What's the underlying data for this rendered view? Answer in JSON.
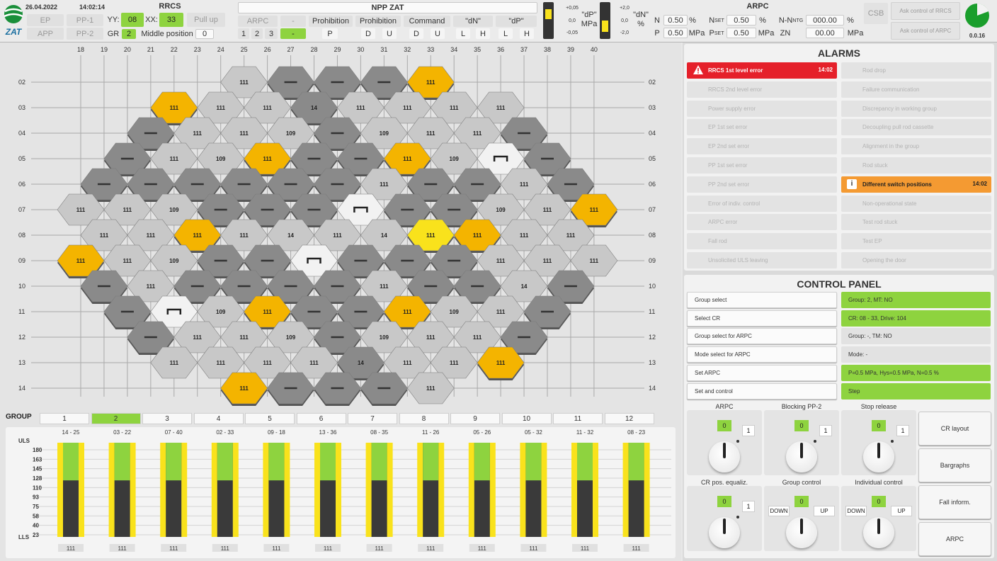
{
  "header": {
    "date": "26.04.2022",
    "time": "14:02:14",
    "logo_text": "ZAT",
    "ep": "EP",
    "pp1": "PP-1",
    "app": "APP",
    "pp2": "PP-2",
    "rrcs_title": "RRCS",
    "yy_label": "YY:",
    "yy_value": "08",
    "xx_label": "XX:",
    "xx_value": "33",
    "pull_up": "Pull up",
    "gr_label": "GR",
    "gr_value": "2",
    "middle_label": "Middle position",
    "middle_value": "0",
    "npp_title": "NPP ZAT",
    "arpc_btn": "ARPC",
    "dash_btn": "-",
    "prohibition1": "Prohibition",
    "prohibition2": "Prohibition",
    "command": "Command",
    "dn_label": "\"dN\"",
    "dp_label": "\"dP\"",
    "n1": "1",
    "n2": "2",
    "n3": "3",
    "green_dash": "-",
    "p_key": "P",
    "d1": "D",
    "u1": "U",
    "d2": "D",
    "u2": "U",
    "l1": "L",
    "h1": "H",
    "l2": "L",
    "h2": "H",
    "gauge1_top": "+0,05",
    "gauge1_mid": "0,0",
    "gauge1_bot": "-0,05",
    "gauge1_label1": "\"dP\"",
    "gauge1_label2": "MPa",
    "gauge2_top": "+2,0",
    "gauge2_mid": "0,0",
    "gauge2_bot": "-2,0",
    "gauge2_label1": "\"dN\"",
    "gauge2_label2": "%",
    "arpc_title": "ARPC",
    "n_label": "N",
    "n_value": "0.50",
    "n_unit": "%",
    "nset_label": "N",
    "nset_sub": "SET",
    "nset_value": "0.50",
    "nset_unit": "%",
    "nn_label": "N-N",
    "nn_sub": "NTG",
    "nn_value": "000.00",
    "nn_unit": "%",
    "p_label": "P",
    "p_value": "0.50",
    "p_unit": "MPa",
    "pset_label": "P",
    "pset_sub": "SET",
    "pset_value": "0.50",
    "pset_unit": "MPa",
    "zn_label": "ZN",
    "zn_value": "00.00",
    "zn_unit": "MPa",
    "csb": "CSB",
    "ask_rrcs": "Ask control of RRCS",
    "ask_arpc": "Ask control of ARPC",
    "version": "0.0.16"
  },
  "grid": {
    "col_labels": [
      "18",
      "19",
      "20",
      "21",
      "22",
      "23",
      "24",
      "25",
      "26",
      "27",
      "28",
      "29",
      "30",
      "31",
      "32",
      "33",
      "34",
      "35",
      "36",
      "37",
      "38",
      "39",
      "40"
    ],
    "row_labels": [
      "02",
      "03",
      "04",
      "05",
      "06",
      "07",
      "08",
      "09",
      "10",
      "11",
      "12",
      "13",
      "14"
    ],
    "cells": [
      {
        "r": 0,
        "c": 25,
        "t": "l",
        "v": "111"
      },
      {
        "r": 0,
        "c": 27,
        "t": "d",
        "v": "—"
      },
      {
        "r": 0,
        "c": 29,
        "t": "d",
        "v": "—"
      },
      {
        "r": 0,
        "c": 31,
        "t": "d",
        "v": "—"
      },
      {
        "r": 0,
        "c": 33,
        "t": "o",
        "v": "111"
      },
      {
        "r": 1,
        "c": 22,
        "t": "o",
        "v": "111"
      },
      {
        "r": 1,
        "c": 24,
        "t": "l",
        "v": "111"
      },
      {
        "r": 1,
        "c": 26,
        "t": "l",
        "v": "111"
      },
      {
        "r": 1,
        "c": 28,
        "t": "d",
        "v": "14"
      },
      {
        "r": 1,
        "c": 30,
        "t": "l",
        "v": "111"
      },
      {
        "r": 1,
        "c": 32,
        "t": "l",
        "v": "111"
      },
      {
        "r": 1,
        "c": 34,
        "t": "l",
        "v": "111"
      },
      {
        "r": 1,
        "c": 36,
        "t": "l",
        "v": "111"
      },
      {
        "r": 2,
        "c": 21,
        "t": "d",
        "v": "—"
      },
      {
        "r": 2,
        "c": 23,
        "t": "l",
        "v": "111"
      },
      {
        "r": 2,
        "c": 25,
        "t": "l",
        "v": "111"
      },
      {
        "r": 2,
        "c": 27,
        "t": "l",
        "v": "109"
      },
      {
        "r": 2,
        "c": 29,
        "t": "d",
        "v": "—"
      },
      {
        "r": 2,
        "c": 31,
        "t": "l",
        "v": "109"
      },
      {
        "r": 2,
        "c": 33,
        "t": "l",
        "v": "111"
      },
      {
        "r": 2,
        "c": 35,
        "t": "l",
        "v": "111"
      },
      {
        "r": 2,
        "c": 37,
        "t": "d",
        "v": "—"
      },
      {
        "r": 3,
        "c": 20,
        "t": "d",
        "v": "—"
      },
      {
        "r": 3,
        "c": 22,
        "t": "l",
        "v": "111"
      },
      {
        "r": 3,
        "c": 24,
        "t": "l",
        "v": "109"
      },
      {
        "r": 3,
        "c": 26,
        "t": "o",
        "v": "111"
      },
      {
        "r": 3,
        "c": 28,
        "t": "d",
        "v": "—"
      },
      {
        "r": 3,
        "c": 30,
        "t": "d",
        "v": "—"
      },
      {
        "r": 3,
        "c": 32,
        "t": "o",
        "v": "111"
      },
      {
        "r": 3,
        "c": 34,
        "t": "l",
        "v": "109"
      },
      {
        "r": 3,
        "c": 36,
        "t": "w",
        "v": "⊓"
      },
      {
        "r": 3,
        "c": 38,
        "t": "d",
        "v": "—"
      },
      {
        "r": 4,
        "c": 19,
        "t": "d",
        "v": "—"
      },
      {
        "r": 4,
        "c": 21,
        "t": "d",
        "v": "—"
      },
      {
        "r": 4,
        "c": 23,
        "t": "d",
        "v": "—"
      },
      {
        "r": 4,
        "c": 25,
        "t": "d",
        "v": "—"
      },
      {
        "r": 4,
        "c": 27,
        "t": "d",
        "v": "—"
      },
      {
        "r": 4,
        "c": 29,
        "t": "d",
        "v": "—"
      },
      {
        "r": 4,
        "c": 31,
        "t": "l",
        "v": "111"
      },
      {
        "r": 4,
        "c": 33,
        "t": "d",
        "v": "—"
      },
      {
        "r": 4,
        "c": 35,
        "t": "d",
        "v": "—"
      },
      {
        "r": 4,
        "c": 37,
        "t": "l",
        "v": "111"
      },
      {
        "r": 4,
        "c": 39,
        "t": "d",
        "v": "—"
      },
      {
        "r": 5,
        "c": 18,
        "t": "l",
        "v": "111"
      },
      {
        "r": 5,
        "c": 20,
        "t": "l",
        "v": "111"
      },
      {
        "r": 5,
        "c": 22,
        "t": "l",
        "v": "109"
      },
      {
        "r": 5,
        "c": 24,
        "t": "d",
        "v": "—"
      },
      {
        "r": 5,
        "c": 26,
        "t": "d",
        "v": "—"
      },
      {
        "r": 5,
        "c": 28,
        "t": "d",
        "v": "—"
      },
      {
        "r": 5,
        "c": 30,
        "t": "w",
        "v": "⊓"
      },
      {
        "r": 5,
        "c": 32,
        "t": "d",
        "v": "—"
      },
      {
        "r": 5,
        "c": 34,
        "t": "d",
        "v": "—"
      },
      {
        "r": 5,
        "c": 36,
        "t": "l",
        "v": "109"
      },
      {
        "r": 5,
        "c": 38,
        "t": "l",
        "v": "111"
      },
      {
        "r": 5,
        "c": 40,
        "t": "o",
        "v": "111"
      },
      {
        "r": 6,
        "c": 19,
        "t": "l",
        "v": "111"
      },
      {
        "r": 6,
        "c": 21,
        "t": "l",
        "v": "111"
      },
      {
        "r": 6,
        "c": 23,
        "t": "o",
        "v": "111"
      },
      {
        "r": 6,
        "c": 25,
        "t": "l",
        "v": "111"
      },
      {
        "r": 6,
        "c": 27,
        "t": "l",
        "v": "14"
      },
      {
        "r": 6,
        "c": 29,
        "t": "l",
        "v": "111"
      },
      {
        "r": 6,
        "c": 31,
        "t": "l",
        "v": "14"
      },
      {
        "r": 6,
        "c": 33,
        "t": "y",
        "v": "111"
      },
      {
        "r": 6,
        "c": 35,
        "t": "o",
        "v": "111"
      },
      {
        "r": 6,
        "c": 37,
        "t": "l",
        "v": "111"
      },
      {
        "r": 6,
        "c": 39,
        "t": "l",
        "v": "111"
      },
      {
        "r": 7,
        "c": 18,
        "t": "o",
        "v": "111"
      },
      {
        "r": 7,
        "c": 20,
        "t": "l",
        "v": "111"
      },
      {
        "r": 7,
        "c": 22,
        "t": "l",
        "v": "109"
      },
      {
        "r": 7,
        "c": 24,
        "t": "d",
        "v": "—"
      },
      {
        "r": 7,
        "c": 26,
        "t": "d",
        "v": "—"
      },
      {
        "r": 7,
        "c": 28,
        "t": "w",
        "v": "⊓"
      },
      {
        "r": 7,
        "c": 30,
        "t": "d",
        "v": "—"
      },
      {
        "r": 7,
        "c": 32,
        "t": "d",
        "v": "—"
      },
      {
        "r": 7,
        "c": 34,
        "t": "d",
        "v": "—"
      },
      {
        "r": 7,
        "c": 36,
        "t": "l",
        "v": "111"
      },
      {
        "r": 7,
        "c": 38,
        "t": "l",
        "v": "111"
      },
      {
        "r": 7,
        "c": 40,
        "t": "l",
        "v": "111"
      },
      {
        "r": 8,
        "c": 19,
        "t": "d",
        "v": "—"
      },
      {
        "r": 8,
        "c": 21,
        "t": "l",
        "v": "111"
      },
      {
        "r": 8,
        "c": 23,
        "t": "d",
        "v": "—"
      },
      {
        "r": 8,
        "c": 25,
        "t": "d",
        "v": "—"
      },
      {
        "r": 8,
        "c": 27,
        "t": "d",
        "v": "—"
      },
      {
        "r": 8,
        "c": 29,
        "t": "d",
        "v": "—"
      },
      {
        "r": 8,
        "c": 31,
        "t": "l",
        "v": "111"
      },
      {
        "r": 8,
        "c": 33,
        "t": "d",
        "v": "—"
      },
      {
        "r": 8,
        "c": 35,
        "t": "d",
        "v": "—"
      },
      {
        "r": 8,
        "c": 37,
        "t": "l",
        "v": "14"
      },
      {
        "r": 8,
        "c": 39,
        "t": "d",
        "v": "—"
      },
      {
        "r": 9,
        "c": 20,
        "t": "d",
        "v": "—"
      },
      {
        "r": 9,
        "c": 22,
        "t": "w",
        "v": "⊓"
      },
      {
        "r": 9,
        "c": 24,
        "t": "l",
        "v": "109"
      },
      {
        "r": 9,
        "c": 26,
        "t": "o",
        "v": "111"
      },
      {
        "r": 9,
        "c": 28,
        "t": "d",
        "v": "—"
      },
      {
        "r": 9,
        "c": 30,
        "t": "d",
        "v": "—"
      },
      {
        "r": 9,
        "c": 32,
        "t": "o",
        "v": "111"
      },
      {
        "r": 9,
        "c": 34,
        "t": "l",
        "v": "109"
      },
      {
        "r": 9,
        "c": 36,
        "t": "l",
        "v": "111"
      },
      {
        "r": 9,
        "c": 38,
        "t": "d",
        "v": "—"
      },
      {
        "r": 10,
        "c": 21,
        "t": "d",
        "v": "—"
      },
      {
        "r": 10,
        "c": 23,
        "t": "l",
        "v": "111"
      },
      {
        "r": 10,
        "c": 25,
        "t": "l",
        "v": "111"
      },
      {
        "r": 10,
        "c": 27,
        "t": "l",
        "v": "109"
      },
      {
        "r": 10,
        "c": 29,
        "t": "d",
        "v": "—"
      },
      {
        "r": 10,
        "c": 31,
        "t": "l",
        "v": "109"
      },
      {
        "r": 10,
        "c": 33,
        "t": "l",
        "v": "111"
      },
      {
        "r": 10,
        "c": 35,
        "t": "l",
        "v": "111"
      },
      {
        "r": 10,
        "c": 37,
        "t": "d",
        "v": "—"
      },
      {
        "r": 11,
        "c": 22,
        "t": "l",
        "v": "111"
      },
      {
        "r": 11,
        "c": 24,
        "t": "l",
        "v": "111"
      },
      {
        "r": 11,
        "c": 26,
        "t": "l",
        "v": "111"
      },
      {
        "r": 11,
        "c": 28,
        "t": "l",
        "v": "111"
      },
      {
        "r": 11,
        "c": 30,
        "t": "d",
        "v": "14"
      },
      {
        "r": 11,
        "c": 32,
        "t": "l",
        "v": "111"
      },
      {
        "r": 11,
        "c": 34,
        "t": "l",
        "v": "111"
      },
      {
        "r": 11,
        "c": 36,
        "t": "o",
        "v": "111"
      },
      {
        "r": 12,
        "c": 25,
        "t": "o",
        "v": "111"
      },
      {
        "r": 12,
        "c": 27,
        "t": "d",
        "v": "—"
      },
      {
        "r": 12,
        "c": 29,
        "t": "d",
        "v": "—"
      },
      {
        "r": 12,
        "c": 31,
        "t": "d",
        "v": "—"
      },
      {
        "r": 12,
        "c": 33,
        "t": "l",
        "v": "111"
      }
    ]
  },
  "groups": {
    "label": "GROUP",
    "buttons": [
      "1",
      "2",
      "3",
      "4",
      "5",
      "6",
      "7",
      "8",
      "9",
      "10",
      "11",
      "12"
    ],
    "active": "2",
    "uls": "ULS",
    "lls": "LLS",
    "scale": [
      "180",
      "163",
      "145",
      "128",
      "110",
      "93",
      "75",
      "58",
      "40",
      "23"
    ],
    "bars": [
      {
        "name": "14 - 25",
        "level": 0.6,
        "value": "111"
      },
      {
        "name": "03 - 22",
        "level": 0.6,
        "value": "111"
      },
      {
        "name": "07 - 40",
        "level": 0.6,
        "value": "111"
      },
      {
        "name": "02 - 33",
        "level": 0.6,
        "value": "111"
      },
      {
        "name": "09 - 18",
        "level": 0.6,
        "value": "111"
      },
      {
        "name": "13 - 36",
        "level": 0.6,
        "value": "111"
      },
      {
        "name": "08 - 35",
        "level": 0.6,
        "value": "111"
      },
      {
        "name": "11 - 26",
        "level": 0.6,
        "value": "111"
      },
      {
        "name": "05 - 26",
        "level": 0.6,
        "value": "111"
      },
      {
        "name": "05 - 32",
        "level": 0.6,
        "value": "111"
      },
      {
        "name": "11 - 32",
        "level": 0.6,
        "value": "111"
      },
      {
        "name": "08 - 23",
        "level": 0.6,
        "value": "111"
      }
    ]
  },
  "alarms": {
    "title": "ALARMS",
    "left": [
      {
        "label": "RRCS 1st level error",
        "time": "14:02",
        "state": "red"
      },
      {
        "label": "RRCS 2nd level error",
        "time": "",
        "state": "off"
      },
      {
        "label": "Power supply error",
        "time": "",
        "state": "off"
      },
      {
        "label": "EP 1st set error",
        "time": "",
        "state": "off"
      },
      {
        "label": "EP 2nd set error",
        "time": "",
        "state": "off"
      },
      {
        "label": "PP 1st set error",
        "time": "",
        "state": "off"
      },
      {
        "label": "PP 2nd set error",
        "time": "",
        "state": "off"
      },
      {
        "label": "Error of indiv. control",
        "time": "",
        "state": "off"
      },
      {
        "label": "ARPC error",
        "time": "",
        "state": "off"
      },
      {
        "label": "Fall rod",
        "time": "",
        "state": "off"
      },
      {
        "label": "Unsolicited ULS leaving",
        "time": "",
        "state": "off"
      }
    ],
    "right": [
      {
        "label": "Rod drop",
        "time": "",
        "state": "off"
      },
      {
        "label": "Failure communication",
        "time": "",
        "state": "off"
      },
      {
        "label": "Discrepancy in working group",
        "time": "",
        "state": "off"
      },
      {
        "label": "Decoupling pull rod cassette",
        "time": "",
        "state": "off"
      },
      {
        "label": "Alignment in the group",
        "time": "",
        "state": "off"
      },
      {
        "label": "Rod stuck",
        "time": "",
        "state": "off"
      },
      {
        "label": "Different switch positions",
        "time": "14:02",
        "state": "orange"
      },
      {
        "label": "Non-operational state",
        "time": "",
        "state": "off"
      },
      {
        "label": "Test rod stuck",
        "time": "",
        "state": "off"
      },
      {
        "label": "Test EP",
        "time": "",
        "state": "off"
      },
      {
        "label": "Opening the door",
        "time": "",
        "state": "off"
      }
    ]
  },
  "control": {
    "title": "CONTROL PANEL",
    "rows": [
      {
        "label": "Group select",
        "value": "Group: 2, MT: NO",
        "active": true
      },
      {
        "label": "Select CR",
        "value": "CR: 08 - 33, Drive: 104",
        "active": true
      },
      {
        "label": "Group select for ARPC",
        "value": "Group: -, TM: NO",
        "active": false
      },
      {
        "label": "Mode select for ARPC",
        "value": "Mode: -",
        "active": false
      },
      {
        "label": "Set ARPC",
        "value": "P=0.5 MPa, Hys=0.5 MPa, N=0.5 %",
        "active": true
      },
      {
        "label": "Set and control",
        "value": "Step",
        "active": true
      }
    ],
    "knobs": [
      {
        "title": "ARPC",
        "left_val": "0",
        "right_val": "1",
        "type": "01"
      },
      {
        "title": "Blocking PP-2",
        "left_val": "0",
        "right_val": "1",
        "type": "01"
      },
      {
        "title": "Stop release",
        "left_val": "0",
        "right_val": "1",
        "type": "01"
      },
      {
        "title": "CR pos. equaliz.",
        "left_val": "0",
        "right_val": "1",
        "type": "01"
      },
      {
        "title": "Group control",
        "left_val": "0",
        "down": "DOWN",
        "up": "UP",
        "type": "du"
      },
      {
        "title": "Individual control",
        "left_val": "0",
        "down": "DOWN",
        "up": "UP",
        "type": "du"
      }
    ],
    "side_buttons": [
      "CR layout",
      "Bargraphs",
      "Fall inform.",
      "ARPC"
    ]
  },
  "colors": {
    "green": "#8ed33f",
    "yellow": "#f9e21c",
    "orange": "#f4b400",
    "red": "#e5202a",
    "alarm_orange": "#f49a32",
    "dark_hex": "#8a8a8a",
    "light_hex": "#c8c8c8",
    "white_hex": "#f2f2f2"
  }
}
